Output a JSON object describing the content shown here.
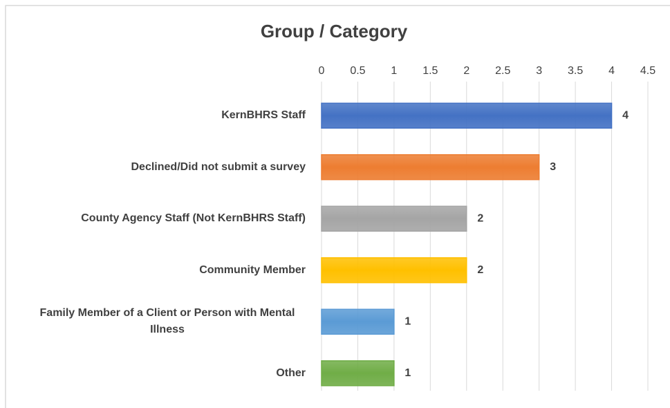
{
  "chart_data": {
    "type": "bar",
    "orientation": "horizontal",
    "title": "Group / Category",
    "categories": [
      "KernBHRS Staff",
      "Declined/Did not submit a survey",
      "County Agency Staff (Not KernBHRS Staff)",
      "Community Member",
      "Family Member of a Client or Person with Mental Illness",
      "Other"
    ],
    "values": [
      4,
      3,
      2,
      2,
      1,
      1
    ],
    "colors": [
      "#4472c4",
      "#ed7d31",
      "#a5a5a5",
      "#ffc000",
      "#5b9bd5",
      "#70ad47"
    ],
    "xlim": [
      0,
      4.5
    ],
    "xticks": [
      0,
      0.5,
      1,
      1.5,
      2,
      2.5,
      3,
      3.5,
      4,
      4.5
    ],
    "grid": true,
    "data_labels": true
  }
}
